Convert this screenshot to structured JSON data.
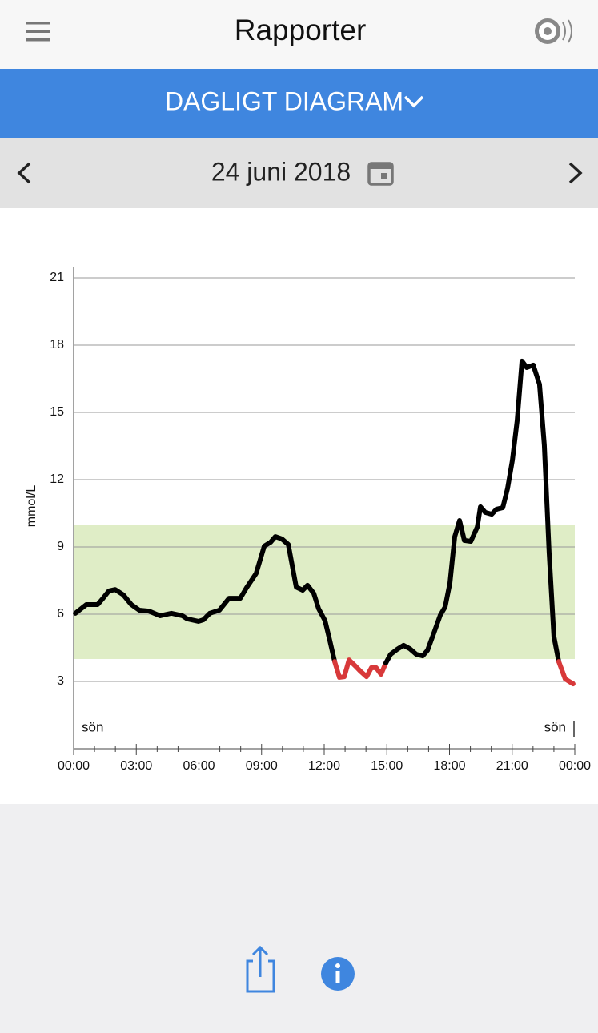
{
  "header": {
    "title": "Rapporter"
  },
  "tab": {
    "label": "DAGLIGT DIAGRAM"
  },
  "date": {
    "label": "24 juni 2018"
  },
  "chart_data": {
    "type": "line",
    "y_label": "mmol/L",
    "annotations": [
      "sön",
      "sön"
    ],
    "x": [
      0.08,
      0.61,
      1.15,
      1.38,
      1.69,
      1.99,
      2.38,
      2.76,
      3.14,
      3.6,
      4.14,
      4.68,
      5.21,
      5.44,
      5.98,
      6.21,
      6.52,
      6.98,
      7.44,
      7.98,
      8.28,
      8.74,
      9.13,
      9.43,
      9.66,
      9.97,
      10.28,
      10.66,
      10.97,
      11.2,
      11.5,
      11.73,
      12.04,
      12.27,
      12.5,
      12.73,
      12.96,
      13.19,
      13.5,
      13.73,
      14.03,
      14.26,
      14.49,
      14.72,
      14.95,
      15.18,
      15.49,
      15.8,
      16.1,
      16.41,
      16.72,
      16.95,
      17.26,
      17.56,
      17.79,
      18.02,
      18.25,
      18.48,
      18.71,
      19.02,
      19.33,
      19.48,
      19.71,
      20.02,
      20.25,
      20.55,
      20.78,
      21.01,
      21.24,
      21.47,
      21.7,
      22.01,
      22.31,
      22.54,
      22.77,
      23.0,
      23.23,
      23.54,
      23.92
    ],
    "series": [
      {
        "color": "#000000",
        "low_color": "#d8393a",
        "values": [
          6.04,
          6.43,
          6.43,
          6.68,
          7.04,
          7.1,
          6.86,
          6.43,
          6.18,
          6.14,
          5.93,
          6.04,
          5.93,
          5.79,
          5.68,
          5.75,
          6.04,
          6.18,
          6.71,
          6.71,
          7.18,
          7.82,
          9.04,
          9.21,
          9.46,
          9.36,
          9.11,
          7.21,
          7.07,
          7.29,
          6.93,
          6.25,
          5.71,
          4.82,
          3.89,
          3.18,
          3.21,
          3.96,
          3.68,
          3.46,
          3.21,
          3.61,
          3.61,
          3.32,
          3.82,
          4.21,
          4.43,
          4.61,
          4.46,
          4.21,
          4.14,
          4.39,
          5.18,
          5.96,
          6.32,
          7.39,
          9.46,
          10.18,
          9.29,
          9.25,
          9.89,
          10.79,
          10.54,
          10.46,
          10.68,
          10.75,
          11.61,
          12.86,
          14.64,
          17.29,
          17.0,
          17.11,
          16.25,
          13.54,
          8.75,
          5.0,
          3.89,
          3.11,
          2.89
        ]
      }
    ],
    "target_range": [
      4,
      10
    ],
    "target_color": "#dfedc6",
    "xlim": [
      0,
      24
    ],
    "xticks": [
      {
        "value": 0,
        "label": "00:00"
      },
      {
        "value": 3,
        "label": "03:00"
      },
      {
        "value": 6,
        "label": "06:00"
      },
      {
        "value": 9,
        "label": "09:00"
      },
      {
        "value": 12,
        "label": "12:00"
      },
      {
        "value": 15,
        "label": "15:00"
      },
      {
        "value": 18,
        "label": "18:00"
      },
      {
        "value": 21,
        "label": "21:00"
      },
      {
        "value": 24,
        "label": "00:00"
      }
    ],
    "xminorticks": [
      1,
      2,
      4,
      5,
      7,
      8,
      10,
      11,
      13,
      14,
      16,
      17,
      19,
      20,
      22,
      23
    ],
    "ylim": [
      0,
      21.5
    ],
    "yticks": [
      3,
      6,
      9,
      12,
      15,
      18,
      21
    ],
    "grid": true
  }
}
